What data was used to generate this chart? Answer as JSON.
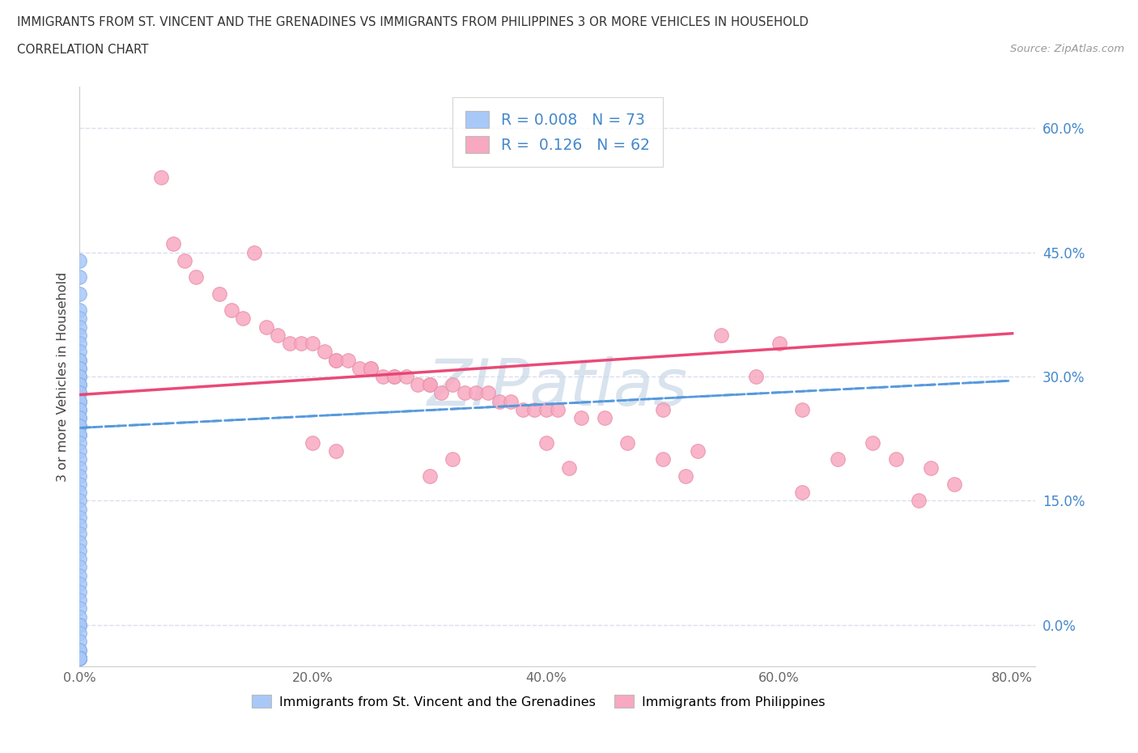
{
  "title_line1": "IMMIGRANTS FROM ST. VINCENT AND THE GRENADINES VS IMMIGRANTS FROM PHILIPPINES 3 OR MORE VEHICLES IN HOUSEHOLD",
  "title_line2": "CORRELATION CHART",
  "source_text": "Source: ZipAtlas.com",
  "ylabel": "3 or more Vehicles in Household",
  "xlim": [
    0.0,
    0.82
  ],
  "ylim": [
    -0.05,
    0.65
  ],
  "plot_ylim_display": [
    0.0,
    0.6
  ],
  "xtick_vals": [
    0.0,
    0.2,
    0.4,
    0.6,
    0.8
  ],
  "xtick_labels": [
    "0.0%",
    "20.0%",
    "40.0%",
    "60.0%",
    "80.0%"
  ],
  "ytick_vals": [
    0.0,
    0.15,
    0.3,
    0.45,
    0.6
  ],
  "ytick_labels": [
    "0.0%",
    "15.0%",
    "30.0%",
    "45.0%",
    "60.0%"
  ],
  "blue_fill": "#a8c8f8",
  "blue_edge": "#8ab0e8",
  "pink_fill": "#f8a8c0",
  "pink_edge": "#e890a8",
  "blue_line_color": "#5599dd",
  "pink_line_color": "#e84070",
  "right_tick_color": "#4488cc",
  "grid_color": "#ddddee",
  "title_color": "#333333",
  "source_color": "#999999",
  "watermark_text": "ZIPatlas",
  "watermark_color": "#c8d8e8",
  "R_blue": 0.008,
  "N_blue": 73,
  "R_pink": 0.126,
  "N_pink": 62,
  "blue_line_y0": 0.238,
  "blue_line_y1": 0.295,
  "pink_line_y0": 0.278,
  "pink_line_y1": 0.352,
  "blue_x": [
    0.0,
    0.0,
    0.0,
    0.0,
    0.0,
    0.0,
    0.0,
    0.0,
    0.0,
    0.0,
    0.0,
    0.0,
    0.0,
    0.0,
    0.0,
    0.0,
    0.0,
    0.0,
    0.0,
    0.0,
    0.0,
    0.0,
    0.0,
    0.0,
    0.0,
    0.0,
    0.0,
    0.0,
    0.0,
    0.0,
    0.0,
    0.0,
    0.0,
    0.0,
    0.0,
    0.0,
    0.0,
    0.0,
    0.0,
    0.0,
    0.0,
    0.0,
    0.0,
    0.0,
    0.0,
    0.0,
    0.0,
    0.0,
    0.0,
    0.0,
    0.0,
    0.0,
    0.0,
    0.0,
    0.0,
    0.0,
    0.0,
    0.0,
    0.0,
    0.0,
    0.0,
    0.0,
    0.0,
    0.0,
    0.0,
    0.0,
    0.0,
    0.0,
    0.0,
    0.0,
    0.0,
    0.0,
    0.0
  ],
  "blue_y": [
    0.44,
    0.42,
    0.4,
    0.38,
    0.37,
    0.36,
    0.35,
    0.34,
    0.33,
    0.32,
    0.32,
    0.31,
    0.31,
    0.3,
    0.3,
    0.29,
    0.29,
    0.28,
    0.28,
    0.27,
    0.27,
    0.27,
    0.26,
    0.26,
    0.25,
    0.25,
    0.24,
    0.24,
    0.23,
    0.23,
    0.22,
    0.21,
    0.2,
    0.19,
    0.18,
    0.17,
    0.16,
    0.15,
    0.14,
    0.13,
    0.12,
    0.11,
    0.1,
    0.09,
    0.08,
    0.07,
    0.06,
    0.05,
    0.04,
    0.03,
    0.02,
    0.01,
    0.0,
    0.0,
    0.0,
    -0.01,
    -0.02,
    -0.03,
    -0.03,
    -0.04,
    -0.04,
    -0.04,
    -0.04,
    -0.04,
    -0.04,
    -0.04,
    -0.04,
    -0.04,
    -0.04,
    -0.04,
    -0.04,
    -0.04,
    -0.04
  ],
  "pink_x": [
    0.07,
    0.08,
    0.09,
    0.1,
    0.12,
    0.13,
    0.14,
    0.15,
    0.16,
    0.17,
    0.18,
    0.19,
    0.2,
    0.21,
    0.22,
    0.22,
    0.23,
    0.24,
    0.25,
    0.25,
    0.26,
    0.27,
    0.27,
    0.28,
    0.29,
    0.3,
    0.3,
    0.31,
    0.32,
    0.33,
    0.34,
    0.35,
    0.36,
    0.37,
    0.38,
    0.39,
    0.4,
    0.41,
    0.43,
    0.45,
    0.47,
    0.5,
    0.53,
    0.55,
    0.58,
    0.62,
    0.65,
    0.68,
    0.7,
    0.73,
    0.75,
    0.2,
    0.3,
    0.4,
    0.5,
    0.6,
    0.22,
    0.32,
    0.42,
    0.52,
    0.62,
    0.72
  ],
  "pink_y": [
    0.54,
    0.46,
    0.44,
    0.42,
    0.4,
    0.38,
    0.37,
    0.45,
    0.36,
    0.35,
    0.34,
    0.34,
    0.34,
    0.33,
    0.32,
    0.32,
    0.32,
    0.31,
    0.31,
    0.31,
    0.3,
    0.3,
    0.3,
    0.3,
    0.29,
    0.29,
    0.29,
    0.28,
    0.29,
    0.28,
    0.28,
    0.28,
    0.27,
    0.27,
    0.26,
    0.26,
    0.26,
    0.26,
    0.25,
    0.25,
    0.22,
    0.26,
    0.21,
    0.35,
    0.3,
    0.26,
    0.2,
    0.22,
    0.2,
    0.19,
    0.17,
    0.22,
    0.18,
    0.22,
    0.2,
    0.34,
    0.21,
    0.2,
    0.19,
    0.18,
    0.16,
    0.15
  ]
}
